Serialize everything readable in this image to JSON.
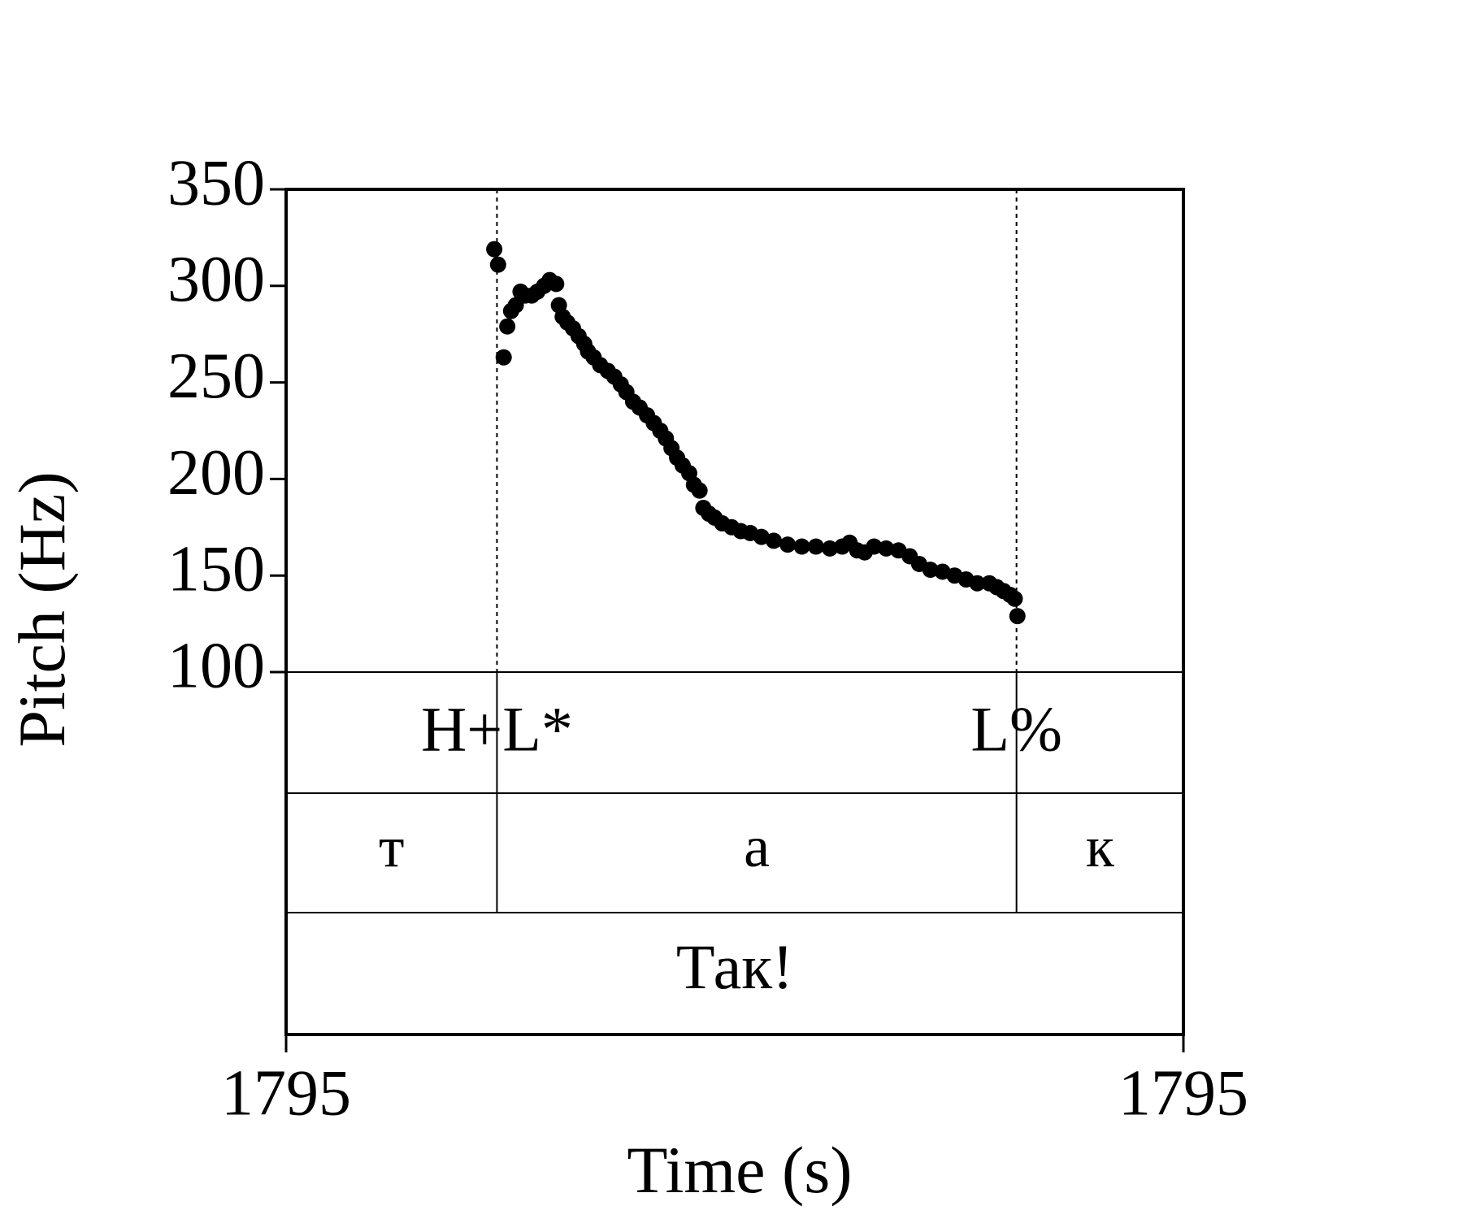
{
  "chart_data": {
    "type": "scatter",
    "x_label": "Time (s)",
    "y_label": "Pitch (Hz)",
    "color": "#000000",
    "xlim": [
      1795.0,
      1795.4
    ],
    "xticks": [
      {
        "value": 1795.0,
        "label": "1795"
      },
      {
        "value": 1795.4,
        "label": "1795"
      }
    ],
    "ylim": [
      100,
      350
    ],
    "yticks": [
      100,
      150,
      200,
      250,
      300,
      350
    ],
    "x": [
      1795.0928,
      1795.0945,
      1795.097,
      1795.0986,
      1795.1003,
      1795.1024,
      1795.1045,
      1795.1066,
      1795.1095,
      1795.112,
      1795.115,
      1795.1175,
      1795.1204,
      1795.1216,
      1795.1233,
      1795.1254,
      1795.1279,
      1795.1304,
      1795.1329,
      1795.1346,
      1795.1371,
      1795.14,
      1795.1434,
      1795.1463,
      1795.1492,
      1795.1517,
      1795.1547,
      1795.1576,
      1795.1609,
      1795.1639,
      1795.1668,
      1795.1693,
      1795.1718,
      1795.1743,
      1795.1768,
      1795.1797,
      1795.1818,
      1795.1843,
      1795.186,
      1795.1885,
      1795.191,
      1795.1944,
      1795.1986,
      1795.2027,
      1795.2069,
      1795.2119,
      1795.2174,
      1795.2236,
      1795.2299,
      1795.2362,
      1795.2424,
      1795.2479,
      1795.2512,
      1795.2546,
      1795.2579,
      1795.2621,
      1795.2675,
      1795.273,
      1795.278,
      1795.2822,
      1795.2872,
      1795.2926,
      1795.298,
      1795.3031,
      1795.3081,
      1795.3135,
      1795.3168,
      1795.3198,
      1795.3227,
      1795.3248,
      1795.326
    ],
    "values": [
      319,
      311,
      263,
      279,
      287,
      290,
      297,
      295,
      295,
      297,
      300,
      303,
      301,
      290,
      284,
      281,
      278,
      274,
      270,
      266,
      263,
      259,
      256,
      253,
      249,
      245,
      240,
      237,
      233,
      229,
      225,
      221,
      216,
      211,
      207,
      203,
      197,
      194,
      185,
      182,
      180,
      177,
      175,
      173,
      172,
      170,
      168,
      166,
      165,
      165,
      164,
      165,
      167,
      163,
      162,
      165,
      164,
      163,
      160,
      156,
      153,
      152,
      150,
      148,
      146,
      146,
      144,
      142,
      140,
      138,
      129
    ],
    "tone_tier": {
      "points": [
        {
          "label": "H+L*",
          "time": 1795.094
        },
        {
          "label": "L%",
          "time": 1795.3256
        }
      ]
    },
    "segment_tier": {
      "boundaries": [
        1795.094,
        1795.3256
      ],
      "labels": [
        "т",
        "а",
        "к"
      ]
    },
    "word_tier": {
      "labels": [
        "Так!"
      ]
    }
  }
}
